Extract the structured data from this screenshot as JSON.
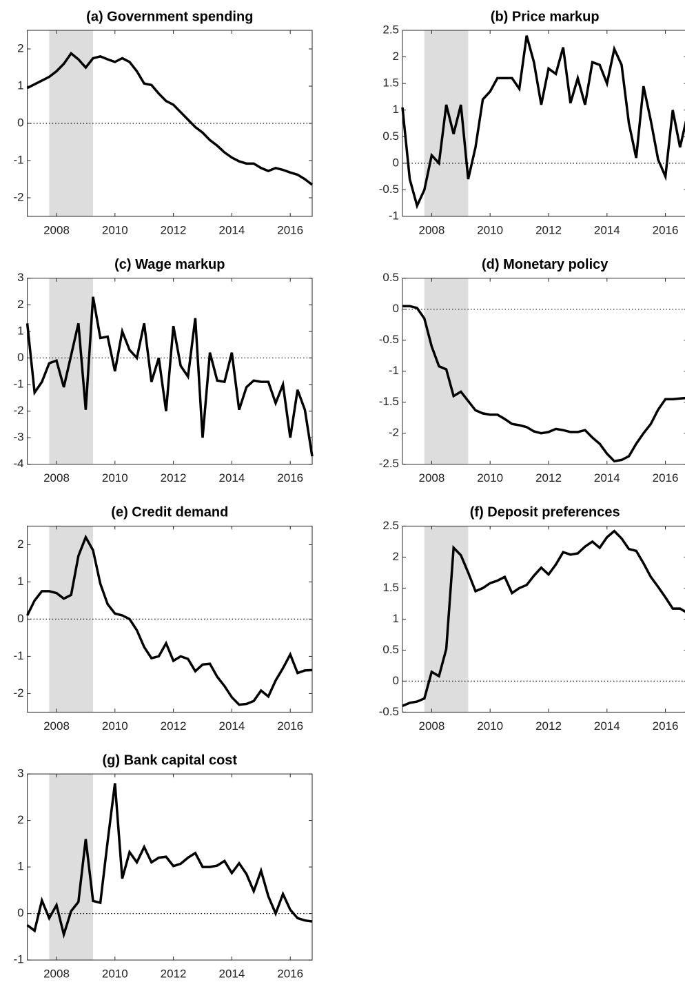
{
  "chart_data": [
    {
      "type": "line",
      "title": "(a) Government spending",
      "color": "#000000",
      "shade": [
        2007.75,
        2009.25
      ],
      "shade_color": "#dddddd",
      "xlim": [
        2007,
        2016.75
      ],
      "xticks": [
        2008,
        2010,
        2012,
        2014,
        2016
      ],
      "ylim": [
        -2.5,
        2.5
      ],
      "yticks": [
        -2,
        -1,
        0,
        1,
        2
      ],
      "x": [
        2007,
        2007.25,
        2007.5,
        2007.75,
        2008,
        2008.25,
        2008.5,
        2008.75,
        2009,
        2009.25,
        2009.5,
        2009.75,
        2010,
        2010.25,
        2010.5,
        2010.75,
        2011,
        2011.25,
        2011.5,
        2011.75,
        2012,
        2012.25,
        2012.5,
        2012.75,
        2013,
        2013.25,
        2013.5,
        2013.75,
        2014,
        2014.25,
        2014.5,
        2014.75,
        2015,
        2015.25,
        2015.5,
        2015.75,
        2016,
        2016.25,
        2016.5,
        2016.75
      ],
      "values": [
        0.95,
        1.05,
        1.15,
        1.25,
        1.4,
        1.6,
        1.88,
        1.72,
        1.5,
        1.75,
        1.8,
        1.72,
        1.65,
        1.75,
        1.65,
        1.4,
        1.07,
        1.03,
        0.8,
        0.6,
        0.5,
        0.3,
        0.1,
        -0.1,
        -0.25,
        -0.45,
        -0.6,
        -0.78,
        -0.92,
        -1.02,
        -1.08,
        -1.08,
        -1.2,
        -1.28,
        -1.2,
        -1.25,
        -1.32,
        -1.38,
        -1.5,
        -1.65
      ]
    },
    {
      "type": "line",
      "title": "(b) Price markup",
      "color": "#000000",
      "shade": [
        2007.75,
        2009.25
      ],
      "shade_color": "#dddddd",
      "xlim": [
        2007,
        2016.75
      ],
      "xticks": [
        2008,
        2010,
        2012,
        2014,
        2016
      ],
      "ylim": [
        -1,
        2.5
      ],
      "yticks": [
        -1,
        -0.5,
        0,
        0.5,
        1,
        1.5,
        2,
        2.5
      ],
      "x": [
        2007,
        2007.25,
        2007.5,
        2007.75,
        2008,
        2008.25,
        2008.5,
        2008.75,
        2009,
        2009.25,
        2009.5,
        2009.75,
        2010,
        2010.25,
        2010.5,
        2010.75,
        2011,
        2011.25,
        2011.5,
        2011.75,
        2012,
        2012.25,
        2012.5,
        2012.75,
        2013,
        2013.25,
        2013.5,
        2013.75,
        2014,
        2014.25,
        2014.5,
        2014.75,
        2015,
        2015.25,
        2015.5,
        2015.75,
        2016,
        2016.25,
        2016.5,
        2016.75
      ],
      "values": [
        1.05,
        -0.3,
        -0.8,
        -0.5,
        0.15,
        0.0,
        1.1,
        0.55,
        1.1,
        -0.3,
        0.3,
        1.2,
        1.35,
        1.6,
        1.6,
        1.6,
        1.4,
        2.4,
        1.9,
        1.1,
        1.78,
        1.68,
        2.18,
        1.13,
        1.6,
        1.1,
        1.9,
        1.85,
        1.5,
        2.15,
        1.85,
        0.75,
        0.1,
        1.45,
        0.8,
        0.07,
        -0.25,
        1.0,
        0.3,
        0.9
      ]
    },
    {
      "type": "line",
      "title": "(c) Wage markup",
      "color": "#000000",
      "shade": [
        2007.75,
        2009.25
      ],
      "shade_color": "#dddddd",
      "xlim": [
        2007,
        2016.75
      ],
      "xticks": [
        2008,
        2010,
        2012,
        2014,
        2016
      ],
      "ylim": [
        -4,
        3
      ],
      "yticks": [
        -4,
        -3,
        -2,
        -1,
        0,
        1,
        2,
        3
      ],
      "x": [
        2007,
        2007.25,
        2007.5,
        2007.75,
        2008,
        2008.25,
        2008.5,
        2008.75,
        2009,
        2009.25,
        2009.5,
        2009.75,
        2010,
        2010.25,
        2010.5,
        2010.75,
        2011,
        2011.25,
        2011.5,
        2011.75,
        2012,
        2012.25,
        2012.5,
        2012.75,
        2013,
        2013.25,
        2013.5,
        2013.75,
        2014,
        2014.25,
        2014.5,
        2014.75,
        2015,
        2015.25,
        2015.5,
        2015.75,
        2016,
        2016.25,
        2016.5,
        2016.75
      ],
      "values": [
        1.3,
        -1.3,
        -0.9,
        -0.2,
        -0.1,
        -1.1,
        0.1,
        1.3,
        -1.95,
        2.3,
        0.75,
        0.8,
        -0.5,
        1.0,
        0.3,
        0.0,
        1.3,
        -0.9,
        0.0,
        -2.0,
        1.2,
        -0.3,
        -0.7,
        1.5,
        -3.0,
        0.2,
        -0.85,
        -0.9,
        0.2,
        -1.95,
        -1.1,
        -0.85,
        -0.9,
        -0.9,
        -1.7,
        -1.0,
        -3.0,
        -1.2,
        -1.95,
        -3.7
      ]
    },
    {
      "type": "line",
      "title": "(d) Monetary policy",
      "color": "#000000",
      "shade": [
        2007.75,
        2009.25
      ],
      "shade_color": "#dddddd",
      "xlim": [
        2007,
        2016.75
      ],
      "xticks": [
        2008,
        2010,
        2012,
        2014,
        2016
      ],
      "ylim": [
        -2.5,
        0.5
      ],
      "yticks": [
        -2.5,
        -2,
        -1.5,
        -1,
        -0.5,
        0,
        0.5
      ],
      "x": [
        2007,
        2007.25,
        2007.5,
        2007.75,
        2008,
        2008.25,
        2008.5,
        2008.75,
        2009,
        2009.25,
        2009.5,
        2009.75,
        2010,
        2010.25,
        2010.5,
        2010.75,
        2011,
        2011.25,
        2011.5,
        2011.75,
        2012,
        2012.25,
        2012.5,
        2012.75,
        2013,
        2013.25,
        2013.5,
        2013.75,
        2014,
        2014.25,
        2014.5,
        2014.75,
        2015,
        2015.25,
        2015.5,
        2015.75,
        2016,
        2016.25,
        2016.5,
        2016.75
      ],
      "values": [
        0.05,
        0.05,
        0.02,
        -0.15,
        -0.6,
        -0.92,
        -0.97,
        -1.4,
        -1.33,
        -1.48,
        -1.63,
        -1.68,
        -1.7,
        -1.7,
        -1.77,
        -1.85,
        -1.87,
        -1.9,
        -1.97,
        -2.0,
        -1.98,
        -1.93,
        -1.95,
        -1.98,
        -1.98,
        -1.95,
        -2.07,
        -2.17,
        -2.33,
        -2.45,
        -2.43,
        -2.37,
        -2.17,
        -2.0,
        -1.85,
        -1.62,
        -1.45,
        -1.45,
        -1.44,
        -1.43
      ]
    },
    {
      "type": "line",
      "title": "(e) Credit demand",
      "color": "#000000",
      "shade": [
        2007.75,
        2009.25
      ],
      "shade_color": "#dddddd",
      "xlim": [
        2007,
        2016.75
      ],
      "xticks": [
        2008,
        2010,
        2012,
        2014,
        2016
      ],
      "ylim": [
        -2.5,
        2.5
      ],
      "yticks": [
        -2,
        -1,
        0,
        1,
        2
      ],
      "x": [
        2007,
        2007.25,
        2007.5,
        2007.75,
        2008,
        2008.25,
        2008.5,
        2008.75,
        2009,
        2009.25,
        2009.5,
        2009.75,
        2010,
        2010.25,
        2010.5,
        2010.75,
        2011,
        2011.25,
        2011.5,
        2011.75,
        2012,
        2012.25,
        2012.5,
        2012.75,
        2013,
        2013.25,
        2013.5,
        2013.75,
        2014,
        2014.25,
        2014.5,
        2014.75,
        2015,
        2015.25,
        2015.5,
        2015.75,
        2016,
        2016.25,
        2016.5,
        2016.75
      ],
      "values": [
        0.1,
        0.5,
        0.75,
        0.75,
        0.7,
        0.55,
        0.65,
        1.7,
        2.2,
        1.85,
        0.95,
        0.4,
        0.15,
        0.1,
        0.0,
        -0.3,
        -0.75,
        -1.05,
        -1.0,
        -0.65,
        -1.12,
        -1.0,
        -1.07,
        -1.4,
        -1.22,
        -1.2,
        -1.55,
        -1.8,
        -2.1,
        -2.3,
        -2.28,
        -2.2,
        -1.92,
        -2.08,
        -1.65,
        -1.32,
        -0.95,
        -1.45,
        -1.38,
        -1.37
      ]
    },
    {
      "type": "line",
      "title": "(f) Deposit preferences",
      "color": "#000000",
      "shade": [
        2007.75,
        2009.25
      ],
      "shade_color": "#dddddd",
      "xlim": [
        2007,
        2016.75
      ],
      "xticks": [
        2008,
        2010,
        2012,
        2014,
        2016
      ],
      "ylim": [
        -0.5,
        2.5
      ],
      "yticks": [
        -0.5,
        0,
        0.5,
        1,
        1.5,
        2,
        2.5
      ],
      "x": [
        2007,
        2007.25,
        2007.5,
        2007.75,
        2008,
        2008.25,
        2008.5,
        2008.75,
        2009,
        2009.25,
        2009.5,
        2009.75,
        2010,
        2010.25,
        2010.5,
        2010.75,
        2011,
        2011.25,
        2011.5,
        2011.75,
        2012,
        2012.25,
        2012.5,
        2012.75,
        2013,
        2013.25,
        2013.5,
        2013.75,
        2014,
        2014.25,
        2014.5,
        2014.75,
        2015,
        2015.25,
        2015.5,
        2015.75,
        2016,
        2016.25,
        2016.5,
        2016.75
      ],
      "values": [
        -0.4,
        -0.35,
        -0.33,
        -0.28,
        0.15,
        0.08,
        0.52,
        2.15,
        2.03,
        1.75,
        1.45,
        1.5,
        1.58,
        1.62,
        1.68,
        1.42,
        1.5,
        1.55,
        1.7,
        1.83,
        1.72,
        1.88,
        2.08,
        2.04,
        2.06,
        2.17,
        2.25,
        2.15,
        2.32,
        2.42,
        2.3,
        2.13,
        2.1,
        1.9,
        1.68,
        1.52,
        1.35,
        1.17,
        1.17,
        1.1
      ]
    },
    {
      "type": "line",
      "title": "(g) Bank capital cost",
      "color": "#000000",
      "shade": [
        2007.75,
        2009.25
      ],
      "shade_color": "#dddddd",
      "xlim": [
        2007,
        2016.75
      ],
      "xticks": [
        2008,
        2010,
        2012,
        2014,
        2016
      ],
      "ylim": [
        -1,
        3
      ],
      "yticks": [
        -1,
        0,
        1,
        2,
        3
      ],
      "x": [
        2007,
        2007.25,
        2007.5,
        2007.75,
        2008,
        2008.25,
        2008.5,
        2008.75,
        2009,
        2009.25,
        2009.5,
        2009.75,
        2010,
        2010.25,
        2010.5,
        2010.75,
        2011,
        2011.25,
        2011.5,
        2011.75,
        2012,
        2012.25,
        2012.5,
        2012.75,
        2013,
        2013.25,
        2013.5,
        2013.75,
        2014,
        2014.25,
        2014.5,
        2014.75,
        2015,
        2015.25,
        2015.5,
        2015.75,
        2016,
        2016.25,
        2016.5,
        2016.75
      ],
      "values": [
        -0.25,
        -0.37,
        0.28,
        -0.1,
        0.18,
        -0.45,
        0.05,
        0.25,
        1.6,
        0.27,
        0.23,
        1.55,
        2.8,
        0.75,
        1.32,
        1.1,
        1.43,
        1.1,
        1.2,
        1.22,
        1.02,
        1.07,
        1.2,
        1.3,
        1.0,
        1.0,
        1.03,
        1.13,
        0.87,
        1.08,
        0.85,
        0.48,
        0.92,
        0.37,
        0.0,
        0.42,
        0.08,
        -0.1,
        -0.15,
        -0.17
      ]
    }
  ]
}
